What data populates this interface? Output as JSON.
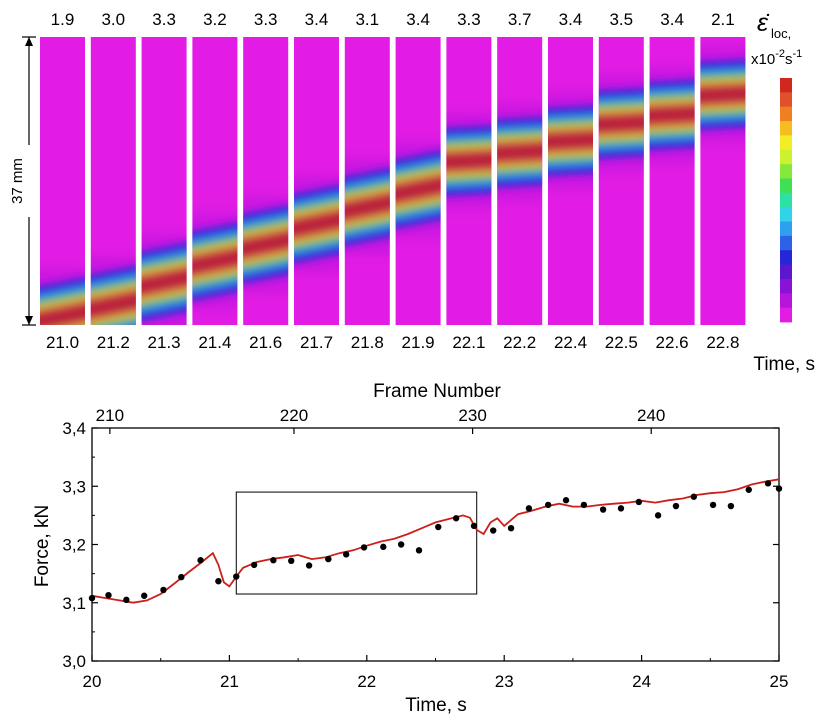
{
  "strain_maps": {
    "top_values": [
      "1.9",
      "3.0",
      "3.3",
      "3.2",
      "3.3",
      "3.4",
      "3.1",
      "3.4",
      "3.3",
      "3.7",
      "3.4",
      "3.5",
      "3.4",
      "2.1"
    ],
    "time_labels": [
      "21.0",
      "21.2",
      "21.3",
      "21.4",
      "21.6",
      "21.7",
      "21.8",
      "21.9",
      "22.1",
      "22.2",
      "22.4",
      "22.5",
      "22.6",
      "22.8"
    ],
    "band_center_fraction": [
      0.97,
      0.93,
      0.85,
      0.78,
      0.72,
      0.65,
      0.59,
      0.53,
      0.43,
      0.4,
      0.36,
      0.3,
      0.27,
      0.2
    ],
    "length_label": "37 mm",
    "time_axis_label": "Time, s",
    "colorbar_title": "ε̇",
    "colorbar_sub": "loc,",
    "colorbar_units_prefix": "x10",
    "colorbar_units_exp": "-2",
    "colorbar_units_s": "s",
    "colorbar_units_exp2": "-1",
    "colorbar_colors": [
      "#d1281e",
      "#e0502a",
      "#f07f24",
      "#f6bd20",
      "#f1ee26",
      "#cdf12e",
      "#86e83a",
      "#40df56",
      "#2de0a6",
      "#31d4e6",
      "#2f9ff0",
      "#2c62e8",
      "#2626d8",
      "#5c16d0",
      "#8a12d6",
      "#b815dc",
      "#e21ce4"
    ],
    "colors": {
      "background_magenta": "#e21ce4"
    }
  },
  "chart_data": {
    "type": "line",
    "xlabel": "Time, s",
    "ylabel": "Force, kN",
    "top_xlabel": "Frame Number",
    "xlim": [
      20,
      25
    ],
    "ylim": [
      3.0,
      3.4
    ],
    "x_ticks": [
      "20",
      "21",
      "22",
      "23",
      "24",
      "25"
    ],
    "y_ticks": [
      "3,0",
      "3,1",
      "3,2",
      "3,3",
      "3,4"
    ],
    "top_ticks": [
      "210",
      "220",
      "230",
      "240"
    ],
    "top_tick_times": [
      20.13,
      21.47,
      22.77,
      24.07
    ],
    "series": [
      {
        "style": "line",
        "color": "#cc1f1a",
        "x": [
          20.0,
          20.1,
          20.2,
          20.3,
          20.4,
          20.5,
          20.6,
          20.7,
          20.8,
          20.88,
          20.92,
          20.96,
          21.0,
          21.05,
          21.1,
          21.2,
          21.3,
          21.4,
          21.5,
          21.6,
          21.7,
          21.8,
          21.9,
          22.0,
          22.1,
          22.2,
          22.3,
          22.4,
          22.5,
          22.6,
          22.7,
          22.75,
          22.8,
          22.85,
          22.9,
          22.95,
          23.0,
          23.05,
          23.1,
          23.2,
          23.3,
          23.4,
          23.5,
          23.6,
          23.7,
          23.8,
          23.9,
          24.0,
          24.1,
          24.2,
          24.3,
          24.4,
          24.5,
          24.6,
          24.7,
          24.8,
          24.9,
          25.0
        ],
        "y": [
          3.112,
          3.108,
          3.104,
          3.1,
          3.104,
          3.115,
          3.133,
          3.152,
          3.17,
          3.185,
          3.165,
          3.135,
          3.128,
          3.145,
          3.16,
          3.17,
          3.175,
          3.178,
          3.182,
          3.175,
          3.178,
          3.185,
          3.19,
          3.198,
          3.205,
          3.21,
          3.218,
          3.228,
          3.238,
          3.244,
          3.25,
          3.246,
          3.225,
          3.218,
          3.238,
          3.245,
          3.232,
          3.242,
          3.252,
          3.258,
          3.265,
          3.27,
          3.265,
          3.265,
          3.268,
          3.27,
          3.272,
          3.275,
          3.272,
          3.276,
          3.279,
          3.285,
          3.288,
          3.29,
          3.295,
          3.303,
          3.308,
          3.312
        ]
      },
      {
        "style": "points",
        "color": "#000000",
        "x": [
          20.0,
          20.12,
          20.25,
          20.38,
          20.52,
          20.65,
          20.79,
          20.92,
          21.05,
          21.18,
          21.32,
          21.45,
          21.58,
          21.72,
          21.85,
          21.98,
          22.12,
          22.25,
          22.38,
          22.52,
          22.65,
          22.78,
          22.92,
          23.05,
          23.18,
          23.32,
          23.45,
          23.58,
          23.72,
          23.85,
          23.98,
          24.12,
          24.25,
          24.38,
          24.52,
          24.65,
          24.78,
          24.92,
          25.0
        ],
        "y": [
          3.108,
          3.113,
          3.105,
          3.112,
          3.122,
          3.144,
          3.173,
          3.137,
          3.145,
          3.165,
          3.173,
          3.172,
          3.164,
          3.175,
          3.183,
          3.195,
          3.196,
          3.2,
          3.19,
          3.23,
          3.245,
          3.232,
          3.224,
          3.228,
          3.262,
          3.268,
          3.276,
          3.268,
          3.26,
          3.262,
          3.273,
          3.25,
          3.266,
          3.282,
          3.268,
          3.266,
          3.294,
          3.305,
          3.296
        ]
      }
    ],
    "annotation_box": {
      "x": [
        21.05,
        22.8
      ],
      "y": [
        3.115,
        3.29
      ]
    }
  }
}
